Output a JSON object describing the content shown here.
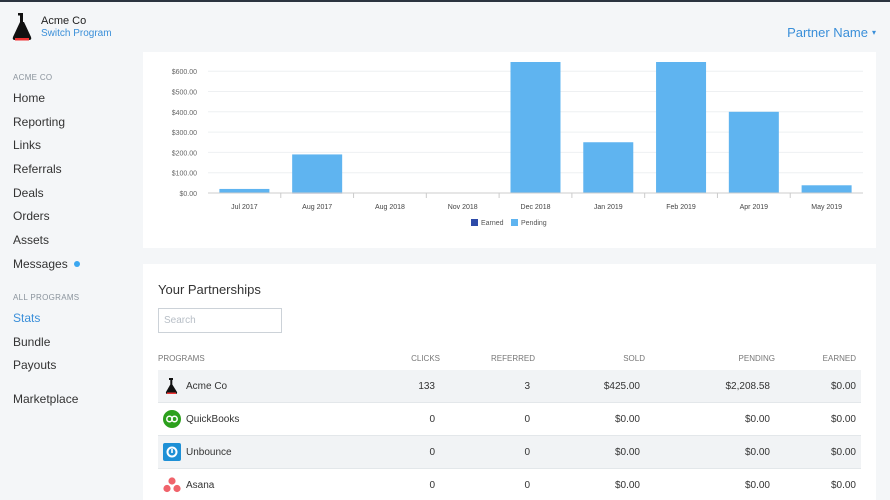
{
  "header": {
    "program_name": "Acme Co",
    "switch_label": "Switch Program",
    "partner_name": "Partner Name",
    "caret": "▾"
  },
  "sidebar": {
    "section1_label": "ACME CO",
    "items": [
      {
        "label": "Home"
      },
      {
        "label": "Reporting"
      },
      {
        "label": "Links"
      },
      {
        "label": "Referrals"
      },
      {
        "label": "Deals"
      },
      {
        "label": "Orders"
      },
      {
        "label": "Assets"
      },
      {
        "label": "Messages"
      }
    ],
    "section2_label": "ALL PROGRAMS",
    "items2": [
      {
        "label": "Stats",
        "active": true
      },
      {
        "label": "Bundle"
      },
      {
        "label": "Payouts"
      }
    ],
    "marketplace_label": "Marketplace"
  },
  "chart_data": {
    "type": "bar",
    "categories": [
      "Jul 2017",
      "Aug 2017",
      "Aug 2018",
      "Nov 2018",
      "Dec 2018",
      "Jan 2019",
      "Feb 2019",
      "Apr 2019",
      "May 2019"
    ],
    "series": [
      {
        "name": "Earned",
        "color": "#2d4aa8",
        "values": [
          0,
          2,
          0,
          0,
          0,
          0,
          0,
          0,
          0
        ]
      },
      {
        "name": "Pending",
        "color": "#5fb4f0",
        "values": [
          20,
          190,
          0,
          0,
          650,
          250,
          650,
          400,
          38
        ]
      }
    ],
    "y_ticks": [
      "$0.00",
      "$100.00",
      "$200.00",
      "$300.00",
      "$400.00",
      "$500.00",
      "$600.00"
    ],
    "ylim": [
      0,
      650
    ],
    "legend": "bottom-center"
  },
  "partnerships": {
    "title": "Your Partnerships",
    "search_placeholder": "Search",
    "columns": [
      "PROGRAMS",
      "CLICKS",
      "REFERRED",
      "SOLD",
      "PENDING",
      "EARNED"
    ],
    "rows": [
      {
        "icon": "acme-flask-icon",
        "name": "Acme Co",
        "clicks": "133",
        "referred": "3",
        "sold": "$425.00",
        "pending": "$2,208.58",
        "earned": "$0.00"
      },
      {
        "icon": "quickbooks-icon",
        "name": "QuickBooks",
        "clicks": "0",
        "referred": "0",
        "sold": "$0.00",
        "pending": "$0.00",
        "earned": "$0.00"
      },
      {
        "icon": "unbounce-icon",
        "name": "Unbounce",
        "clicks": "0",
        "referred": "0",
        "sold": "$0.00",
        "pending": "$0.00",
        "earned": "$0.00"
      },
      {
        "icon": "asana-icon",
        "name": "Asana",
        "clicks": "0",
        "referred": "0",
        "sold": "$0.00",
        "pending": "$0.00",
        "earned": "$0.00"
      }
    ]
  }
}
